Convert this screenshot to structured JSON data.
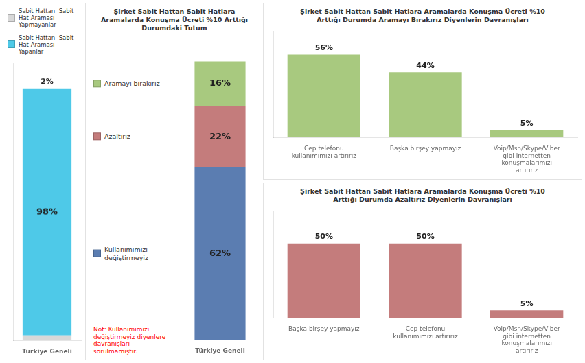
{
  "chart_data": [
    {
      "type": "bar",
      "stacked": true,
      "categories": [
        "Türkiye Geneli"
      ],
      "series": [
        {
          "name": "Sabit Hattan  Sabit\nHat Araması\nYapmayanlar",
          "color": "#d8d8d8",
          "values": [
            2
          ],
          "value_labels": [
            "2%"
          ]
        },
        {
          "name": "Sabit Hattan  Sabit\nHat Araması\nYapanlar",
          "color": "#4ec9e8",
          "values": [
            98
          ],
          "value_labels": [
            "98%"
          ]
        }
      ],
      "ylim": [
        0,
        110
      ],
      "legend": "upper left",
      "data_labels": true,
      "tick_labels": "x",
      "grid": false
    },
    {
      "type": "bar",
      "stacked": true,
      "title": "Şirket Sabit Hattan Sabit Hatlara\nAramalarda Konuşma Ücreti %10 Arttığı\nDurumdaki Tutum",
      "categories": [
        "Türkiye Geneli"
      ],
      "series": [
        {
          "name": "Kullanımımızı\ndeğiştirmeyiz",
          "color": "#5b7db1",
          "values": [
            62
          ],
          "value_labels": [
            "62%"
          ]
        },
        {
          "name": "Azaltırız",
          "color": "#c47c7c",
          "values": [
            22
          ],
          "value_labels": [
            "22%"
          ]
        },
        {
          "name": "Aramayı bırakırız",
          "color": "#a8c97f",
          "values": [
            16
          ],
          "value_labels": [
            "16%"
          ]
        }
      ],
      "ylim": [
        0,
        108
      ],
      "legend": "left",
      "data_labels": true,
      "tick_labels": "x",
      "grid": false,
      "annotations": [
        {
          "text": "Not: Kullanımımızı\ndeğiştirmeyiz diyenlere\ndavranışları\nsorulmamıştır.",
          "color": "red"
        }
      ]
    },
    {
      "type": "bar",
      "title": "Şirket Sabit Hattan Sabit Hatlara Aramalarda Konuşma Ücreti %10\nArttığı Durumda Aramayı Bırakırız Diyenlerin Davranışları",
      "categories": [
        "Cep telefonu\nkullanımımızı artırırız",
        "Başka birşey yapmayız",
        "Voip/Msn/Skype/Viber\ngibi internetten\nkonuşmalarımızı\nartırırız"
      ],
      "values": [
        56,
        44,
        5
      ],
      "value_labels": [
        "56%",
        "44%",
        "5%"
      ],
      "color": "#a8c97f",
      "ylim": [
        0,
        72
      ],
      "data_labels": true,
      "tick_labels": "x",
      "grid": false
    },
    {
      "type": "bar",
      "title": "Şirket Sabit Hattan Sabit Hatlara Aramalarda Konuşma Ücreti %10\nArttığı Durumda Azaltırız Diyenlerin Davranışları",
      "categories": [
        "Başka birşey yapmayız",
        "Cep telefonu\nkullanımımızı artırırız",
        "Voip/Msn/Skype/Viber\ngibi internetten\nkonuşmalarımızı\nartırırız"
      ],
      "values": [
        50,
        50,
        5
      ],
      "value_labels": [
        "50%",
        "50%",
        "5%"
      ],
      "color": "#c47c7c",
      "ylim": [
        0,
        72
      ],
      "data_labels": true,
      "tick_labels": "x",
      "grid": false
    }
  ]
}
